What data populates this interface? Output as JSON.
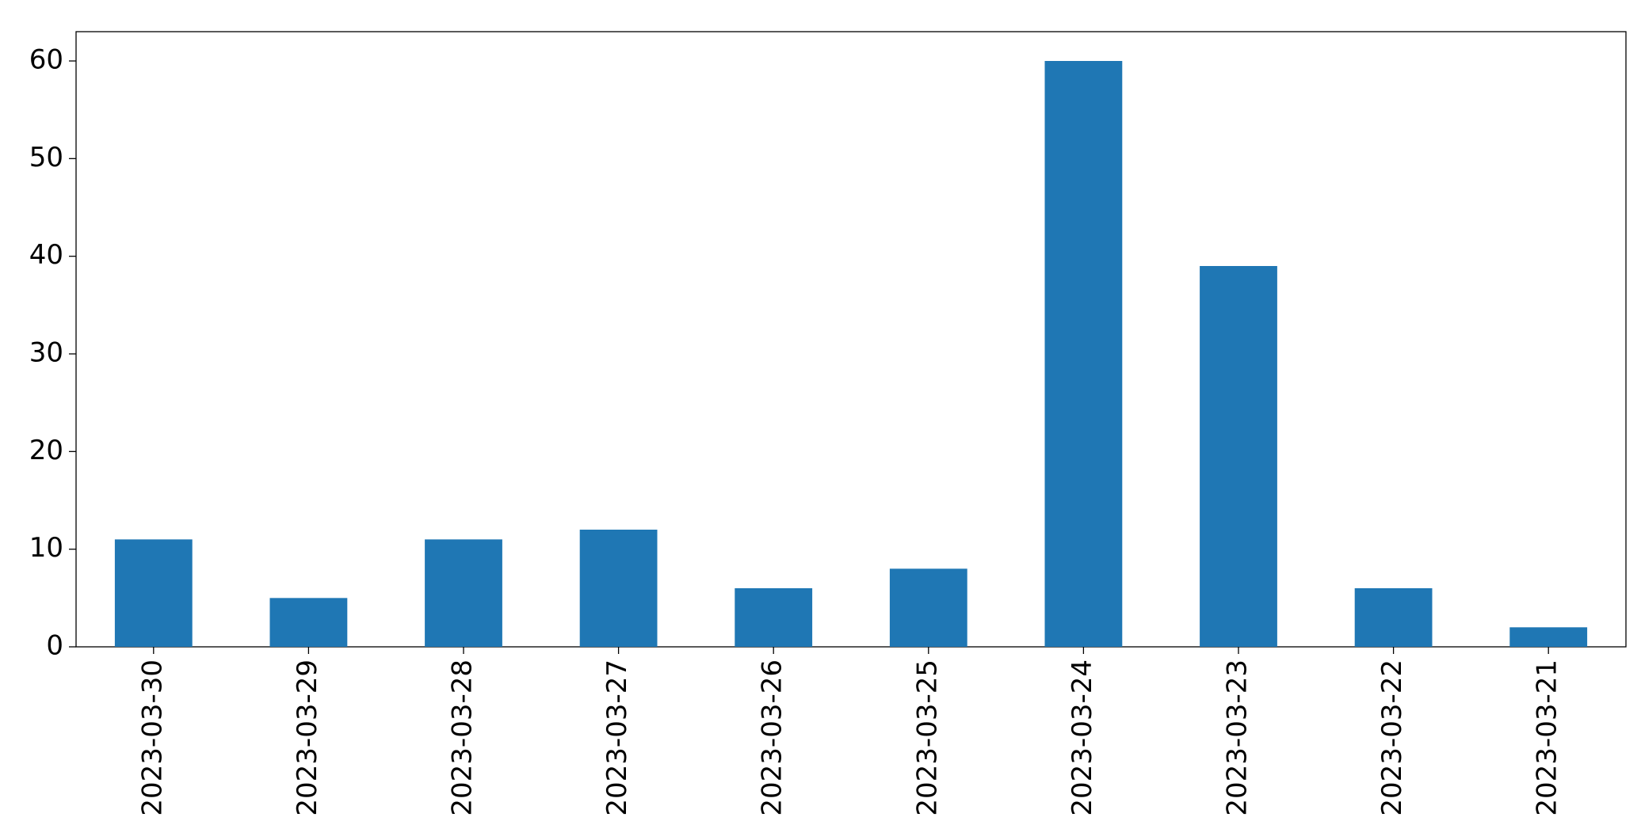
{
  "chart_data": {
    "type": "bar",
    "categories": [
      "2023-03-30",
      "2023-03-29",
      "2023-03-28",
      "2023-03-27",
      "2023-03-26",
      "2023-03-25",
      "2023-03-24",
      "2023-03-23",
      "2023-03-22",
      "2023-03-21"
    ],
    "values": [
      11,
      5,
      11,
      12,
      6,
      8,
      60,
      39,
      6,
      2
    ],
    "color": "#1f77b4",
    "ylim": [
      0,
      63
    ],
    "yticks": [
      0,
      10,
      20,
      30,
      40,
      50,
      60
    ],
    "grid": false
  }
}
